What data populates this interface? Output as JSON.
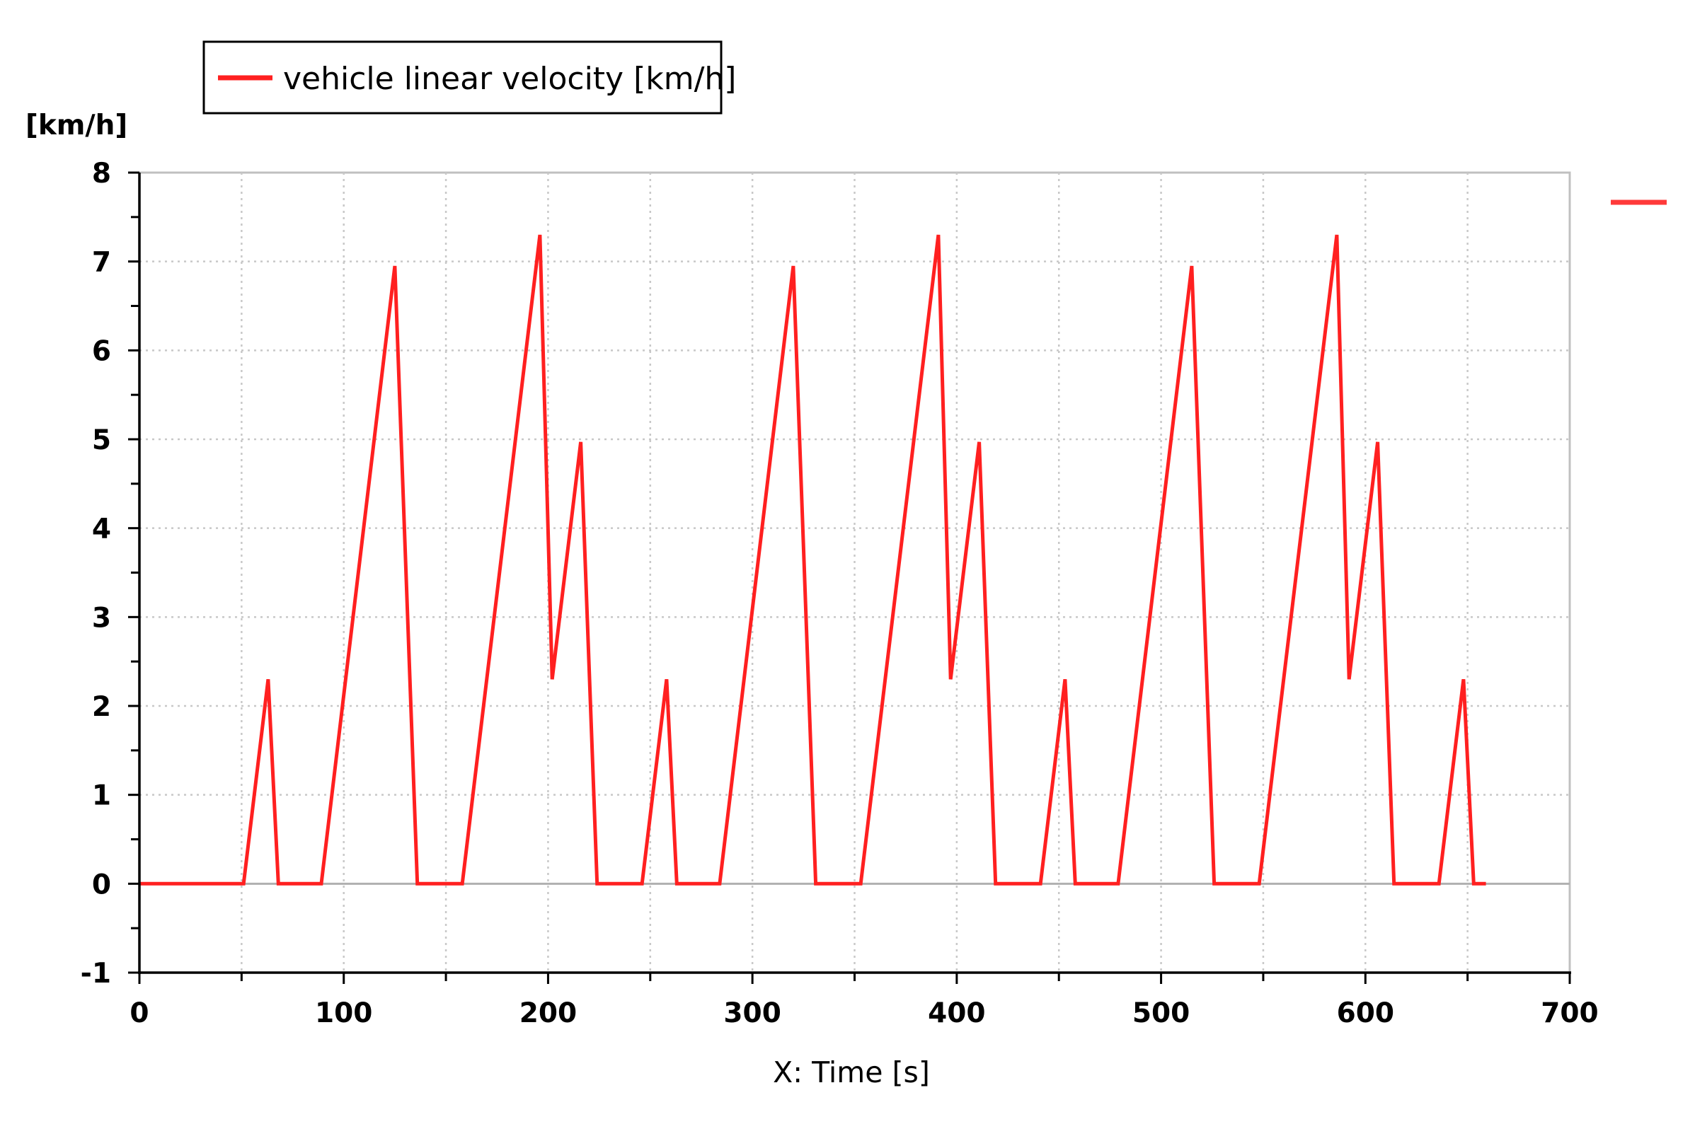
{
  "chart_data": {
    "type": "line",
    "ylabel": "[km/h]",
    "xlabel": "X: Time [s]",
    "xlim": [
      0,
      700
    ],
    "ylim": [
      -1,
      8
    ],
    "x_ticks": [
      "0",
      "100",
      "200",
      "300",
      "400",
      "500",
      "600",
      "700"
    ],
    "y_ticks": [
      "-1",
      "0",
      "1",
      "2",
      "3",
      "4",
      "5",
      "6",
      "7",
      "8"
    ],
    "grid": true,
    "legend_position": "top-left",
    "series": [
      {
        "name": "vehicle linear velocity [km/h]",
        "color": "#ff2020",
        "x": [
          0,
          51,
          63,
          68,
          89,
          125,
          136,
          158,
          196,
          202,
          216,
          224,
          246,
          258,
          263,
          284,
          320,
          331,
          353,
          391,
          397,
          411,
          419,
          441,
          453,
          458,
          479,
          515,
          526,
          548,
          586,
          592,
          606,
          614,
          636,
          648,
          653,
          659
        ],
        "y": [
          0,
          0,
          2.3,
          0,
          0,
          6.95,
          0,
          0,
          7.3,
          2.3,
          4.97,
          0,
          0,
          2.3,
          0,
          0,
          6.95,
          0,
          0,
          7.3,
          2.3,
          4.97,
          0,
          0,
          2.3,
          0,
          0,
          6.95,
          0,
          0,
          7.3,
          2.3,
          4.97,
          0,
          0,
          2.3,
          0,
          0
        ]
      }
    ]
  }
}
